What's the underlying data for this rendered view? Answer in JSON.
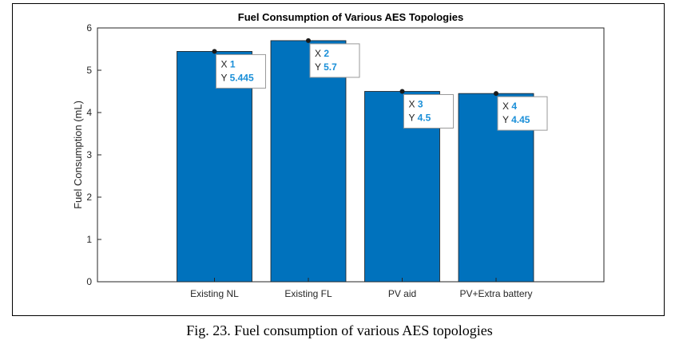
{
  "caption": "Fig. 23. Fuel consumption of various AES topologies",
  "chart_data": {
    "type": "bar",
    "title": "Fuel Consumption of Various AES Topologies",
    "xlabel": "",
    "ylabel": "Fuel Consumption (mL)",
    "categories": [
      "Existing NL",
      "Existing FL",
      "PV aid",
      "PV+Extra battery"
    ],
    "values": [
      5.445,
      5.7,
      4.5,
      4.45
    ],
    "ylim": [
      0,
      6
    ],
    "yticks": [
      0,
      1,
      2,
      3,
      4,
      5,
      6
    ],
    "grid": false,
    "bar_color": "#0072BD",
    "datatips": [
      {
        "x_label": "X",
        "x_value": "1",
        "y_label": "Y",
        "y_value": "5.445"
      },
      {
        "x_label": "X",
        "x_value": "2",
        "y_label": "Y",
        "y_value": "5.7"
      },
      {
        "x_label": "X",
        "x_value": "3",
        "y_label": "Y",
        "y_value": "4.5"
      },
      {
        "x_label": "X",
        "x_value": "4",
        "y_label": "Y",
        "y_value": "4.45"
      }
    ]
  }
}
